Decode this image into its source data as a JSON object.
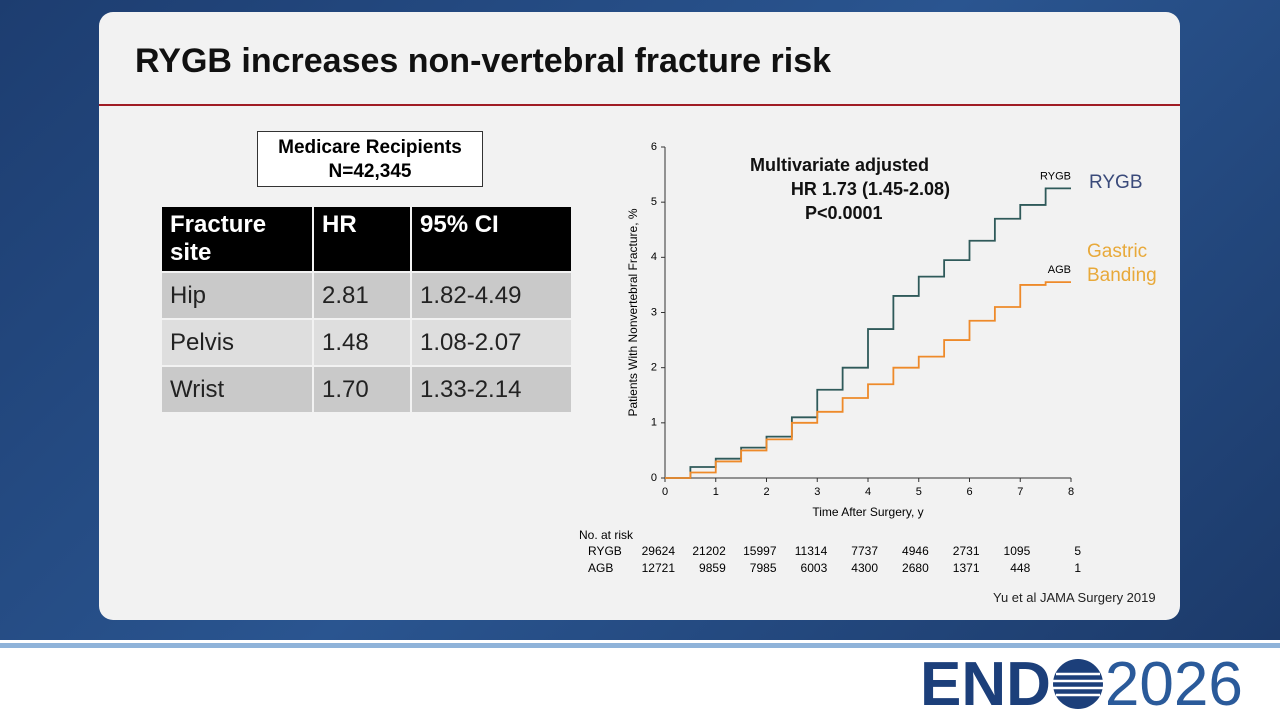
{
  "slide": {
    "title": "RYGB increases non-vertebral fracture risk",
    "box": [
      "Medicare Recipients",
      "N=42,345"
    ],
    "citation": "Yu et al JAMA Surgery 2019"
  },
  "table": {
    "header": [
      "Fracture site",
      "HR",
      "95% CI"
    ],
    "rows": [
      [
        "Hip",
        "2.81",
        "1.82-4.49"
      ],
      [
        "Pelvis",
        "1.48",
        "1.08-2.07"
      ],
      [
        "Wrist",
        "1.70",
        "1.33-2.14"
      ]
    ]
  },
  "chart_data": {
    "type": "line",
    "step": true,
    "xlabel": "Time After Surgery, y",
    "ylabel": "Patients With Nonvertebral Fracture, %",
    "annotation": [
      "Multivariate adjusted",
      "HR 1.73 (1.45-2.08)",
      "P<0.0001"
    ],
    "labels": [
      {
        "text": "RYGB",
        "color": "#3a4a7a"
      },
      {
        "text": "Gastric Banding",
        "color": "#e8a93a"
      }
    ],
    "x": [
      0,
      0.5,
      1,
      1.5,
      2,
      2.5,
      3,
      3.5,
      4,
      4.5,
      5,
      5.5,
      6,
      6.5,
      7,
      7.5,
      8
    ],
    "series": [
      {
        "name": "RYGB",
        "color": "#2f5a5a",
        "values": [
          0,
          0.2,
          0.35,
          0.55,
          0.75,
          1.1,
          1.6,
          2.0,
          2.7,
          3.3,
          3.65,
          3.95,
          4.3,
          4.7,
          4.95,
          5.25,
          5.25
        ]
      },
      {
        "name": "AGB",
        "color": "#ee8a2a",
        "values": [
          0,
          0.1,
          0.3,
          0.5,
          0.7,
          1.0,
          1.2,
          1.45,
          1.7,
          2.0,
          2.2,
          2.5,
          2.85,
          3.1,
          3.5,
          3.55,
          3.55
        ]
      }
    ],
    "xlim": [
      0,
      8
    ],
    "xticks": [
      0,
      1,
      2,
      3,
      4,
      5,
      6,
      7,
      8
    ],
    "ylim": [
      0,
      6
    ],
    "yticks": [
      0,
      1,
      2,
      3,
      4,
      5,
      6
    ],
    "at_risk": {
      "title": "No. at risk",
      "rows": [
        {
          "name": "RYGB",
          "values": [
            "29624",
            "21202",
            "15997",
            "11314",
            "7737",
            "4946",
            "2731",
            "1095",
            "5"
          ]
        },
        {
          "name": "AGB",
          "values": [
            "12721",
            "9859",
            "7985",
            "6003",
            "4300",
            "2680",
            "1371",
            "448",
            "1"
          ]
        }
      ]
    }
  },
  "logo": {
    "left": "END",
    "right": "2026"
  }
}
